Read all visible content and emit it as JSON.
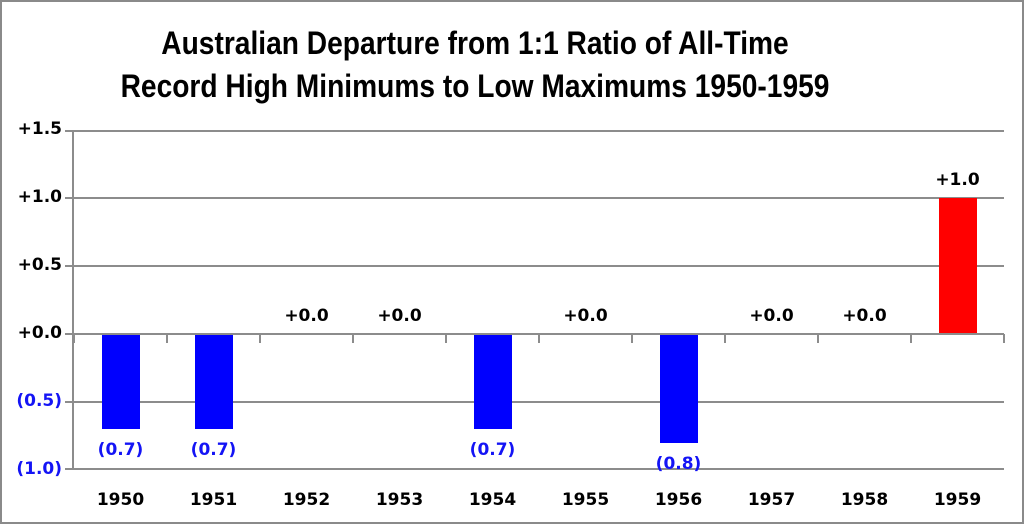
{
  "title": {
    "line1": "Australian Departure from 1:1 Ratio of All-Time",
    "line2": "Record High Minimums to Low Maximums 1950-1959"
  },
  "chart_data": {
    "type": "bar",
    "title": "Australian Departure from 1:1 Ratio of All-Time Record High Minimums to Low Maximums 1950-1959",
    "categories": [
      "1950",
      "1951",
      "1952",
      "1953",
      "1954",
      "1955",
      "1956",
      "1957",
      "1958",
      "1959"
    ],
    "values": [
      -0.7,
      -0.7,
      0.0,
      0.0,
      -0.7,
      0.0,
      -0.8,
      0.0,
      0.0,
      1.0
    ],
    "bar_labels": [
      "(0.7)",
      "(0.7)",
      "+0.0",
      "+0.0",
      "(0.7)",
      "+0.0",
      "(0.8)",
      "+0.0",
      "+0.0",
      "+1.0"
    ],
    "xlabel": "",
    "ylabel": "",
    "ylim": [
      -1.0,
      1.5
    ],
    "yticks": [
      1.5,
      1.0,
      0.5,
      0.0,
      -0.5,
      -1.0
    ],
    "ytick_labels": [
      "+1.5",
      "+1.0",
      "+0.5",
      "+0.0",
      "(0.5)",
      "(1.0)"
    ],
    "grid": true,
    "legend": false,
    "colors": {
      "positive_bar": "#ff0000",
      "negative_bar": "#0000fe",
      "negative_text": "#1414f5",
      "text": "#000000",
      "grid": "#8c8c8c"
    }
  }
}
